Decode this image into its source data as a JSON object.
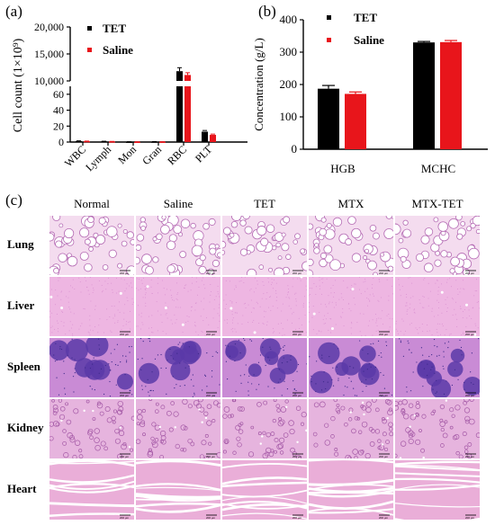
{
  "panels": {
    "a_label": "(a)",
    "b_label": "(b)",
    "c_label": "(c)"
  },
  "chart_data": [
    {
      "type": "bar",
      "ylabel": "Cell count (1×10⁹)",
      "categories": [
        "WBC",
        "Lymph",
        "Mon",
        "Gran",
        "RBC",
        "PLT"
      ],
      "series": [
        {
          "name": "TET",
          "color": "#000000",
          "values": [
            1.2,
            0.8,
            0.3,
            0.5,
            11800,
            13
          ]
        },
        {
          "name": "Saline",
          "color": "#e8151b",
          "values": [
            1.0,
            0.6,
            0.2,
            0.3,
            11100,
            9
          ]
        }
      ],
      "errors": {
        "TET": [
          0.3,
          0.2,
          0.1,
          0.1,
          650,
          1.5
        ],
        "Saline": [
          0.2,
          0.2,
          0.1,
          0.1,
          420,
          1.0
        ]
      },
      "y_broken_axis": {
        "lower": [
          0,
          70
        ],
        "upper": [
          10000,
          20000
        ]
      },
      "yticks_lower": [
        "0",
        "20",
        "40",
        "60"
      ],
      "yticks_upper": [
        "10,000",
        "15,000",
        "20,000"
      ]
    },
    {
      "type": "bar",
      "ylabel": "Concentration (g/L)",
      "categories": [
        "HGB",
        "MCHC"
      ],
      "ylim": [
        0,
        400
      ],
      "yticks": [
        "0",
        "100",
        "200",
        "300",
        "400"
      ],
      "series": [
        {
          "name": "TET",
          "color": "#000000",
          "values": [
            187,
            330
          ]
        },
        {
          "name": "Saline",
          "color": "#e8151b",
          "values": [
            171,
            331
          ]
        }
      ],
      "errors": {
        "TET": [
          10,
          3
        ],
        "Saline": [
          6,
          5
        ]
      }
    }
  ],
  "histology": {
    "columns": [
      "Normal",
      "Saline",
      "TET",
      "MTX",
      "MTX-TET"
    ],
    "rows": [
      {
        "label": "Lung",
        "tissue": "lung",
        "base": "#f4dcef",
        "accent": "#b56bb4"
      },
      {
        "label": "Liver",
        "tissue": "liver",
        "base": "#eeb6e2",
        "accent": "#d88fd0"
      },
      {
        "label": "Spleen",
        "tissue": "spleen",
        "base": "#c98bd5",
        "accent": "#5a3aa8"
      },
      {
        "label": "Kidney",
        "tissue": "kidney",
        "base": "#e6b4de",
        "accent": "#a55aa7"
      },
      {
        "label": "Heart",
        "tissue": "heart",
        "base": "#eaaed8",
        "accent": "#ffffff"
      }
    ],
    "scale_bar": "200 μm"
  }
}
